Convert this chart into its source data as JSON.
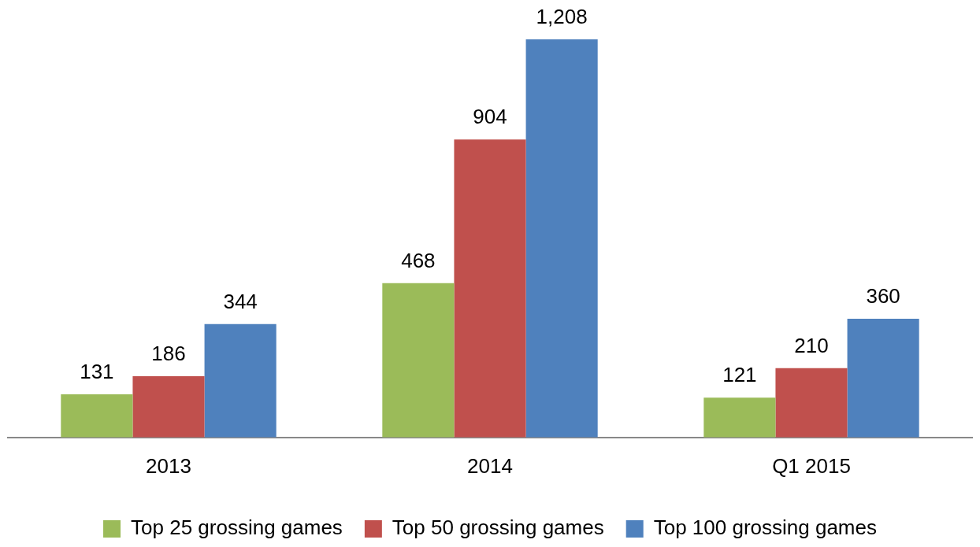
{
  "chart_data": {
    "type": "bar",
    "categories": [
      "2013",
      "2014",
      "Q1 2015"
    ],
    "series": [
      {
        "name": "Top 25 grossing games",
        "color": "#9bbb59",
        "values": [
          131,
          468,
          121
        ],
        "value_labels": [
          "131",
          "468",
          "121"
        ]
      },
      {
        "name": "Top 50 grossing games",
        "color": "#c0504d",
        "values": [
          186,
          904,
          210
        ],
        "value_labels": [
          "186",
          "904",
          "210"
        ]
      },
      {
        "name": "Top 100 grossing games",
        "color": "#4f81bd",
        "values": [
          344,
          1208,
          360
        ],
        "value_labels": [
          "344",
          "1,208",
          "360"
        ]
      }
    ],
    "legend": "bottom"
  }
}
